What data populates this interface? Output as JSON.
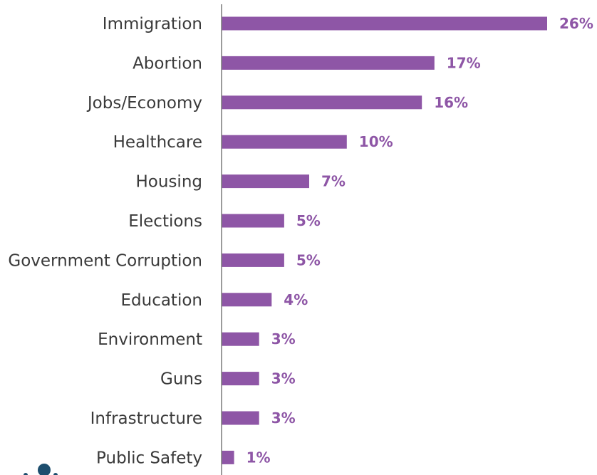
{
  "chart_data": {
    "type": "bar",
    "orientation": "horizontal",
    "categories": [
      "Immigration",
      "Abortion",
      "Jobs/Economy",
      "Healthcare",
      "Housing",
      "Elections",
      "Government Corruption",
      "Education",
      "Environment",
      "Guns",
      "Infrastructure",
      "Public Safety"
    ],
    "values": [
      26,
      17,
      16,
      10,
      7,
      5,
      5,
      4,
      3,
      3,
      3,
      1
    ],
    "value_labels": [
      "26%",
      "17%",
      "16%",
      "10%",
      "7%",
      "5%",
      "5%",
      "4%",
      "3%",
      "3%",
      "3%",
      "1%"
    ],
    "unit": "%",
    "xlim": [
      0,
      26
    ],
    "grid": false,
    "legend": "none",
    "bar_color": "#8e56a6",
    "label_color": "#8e56a6",
    "axis_color": "#7a7a7a",
    "logo_color": "#1d4e6e"
  }
}
